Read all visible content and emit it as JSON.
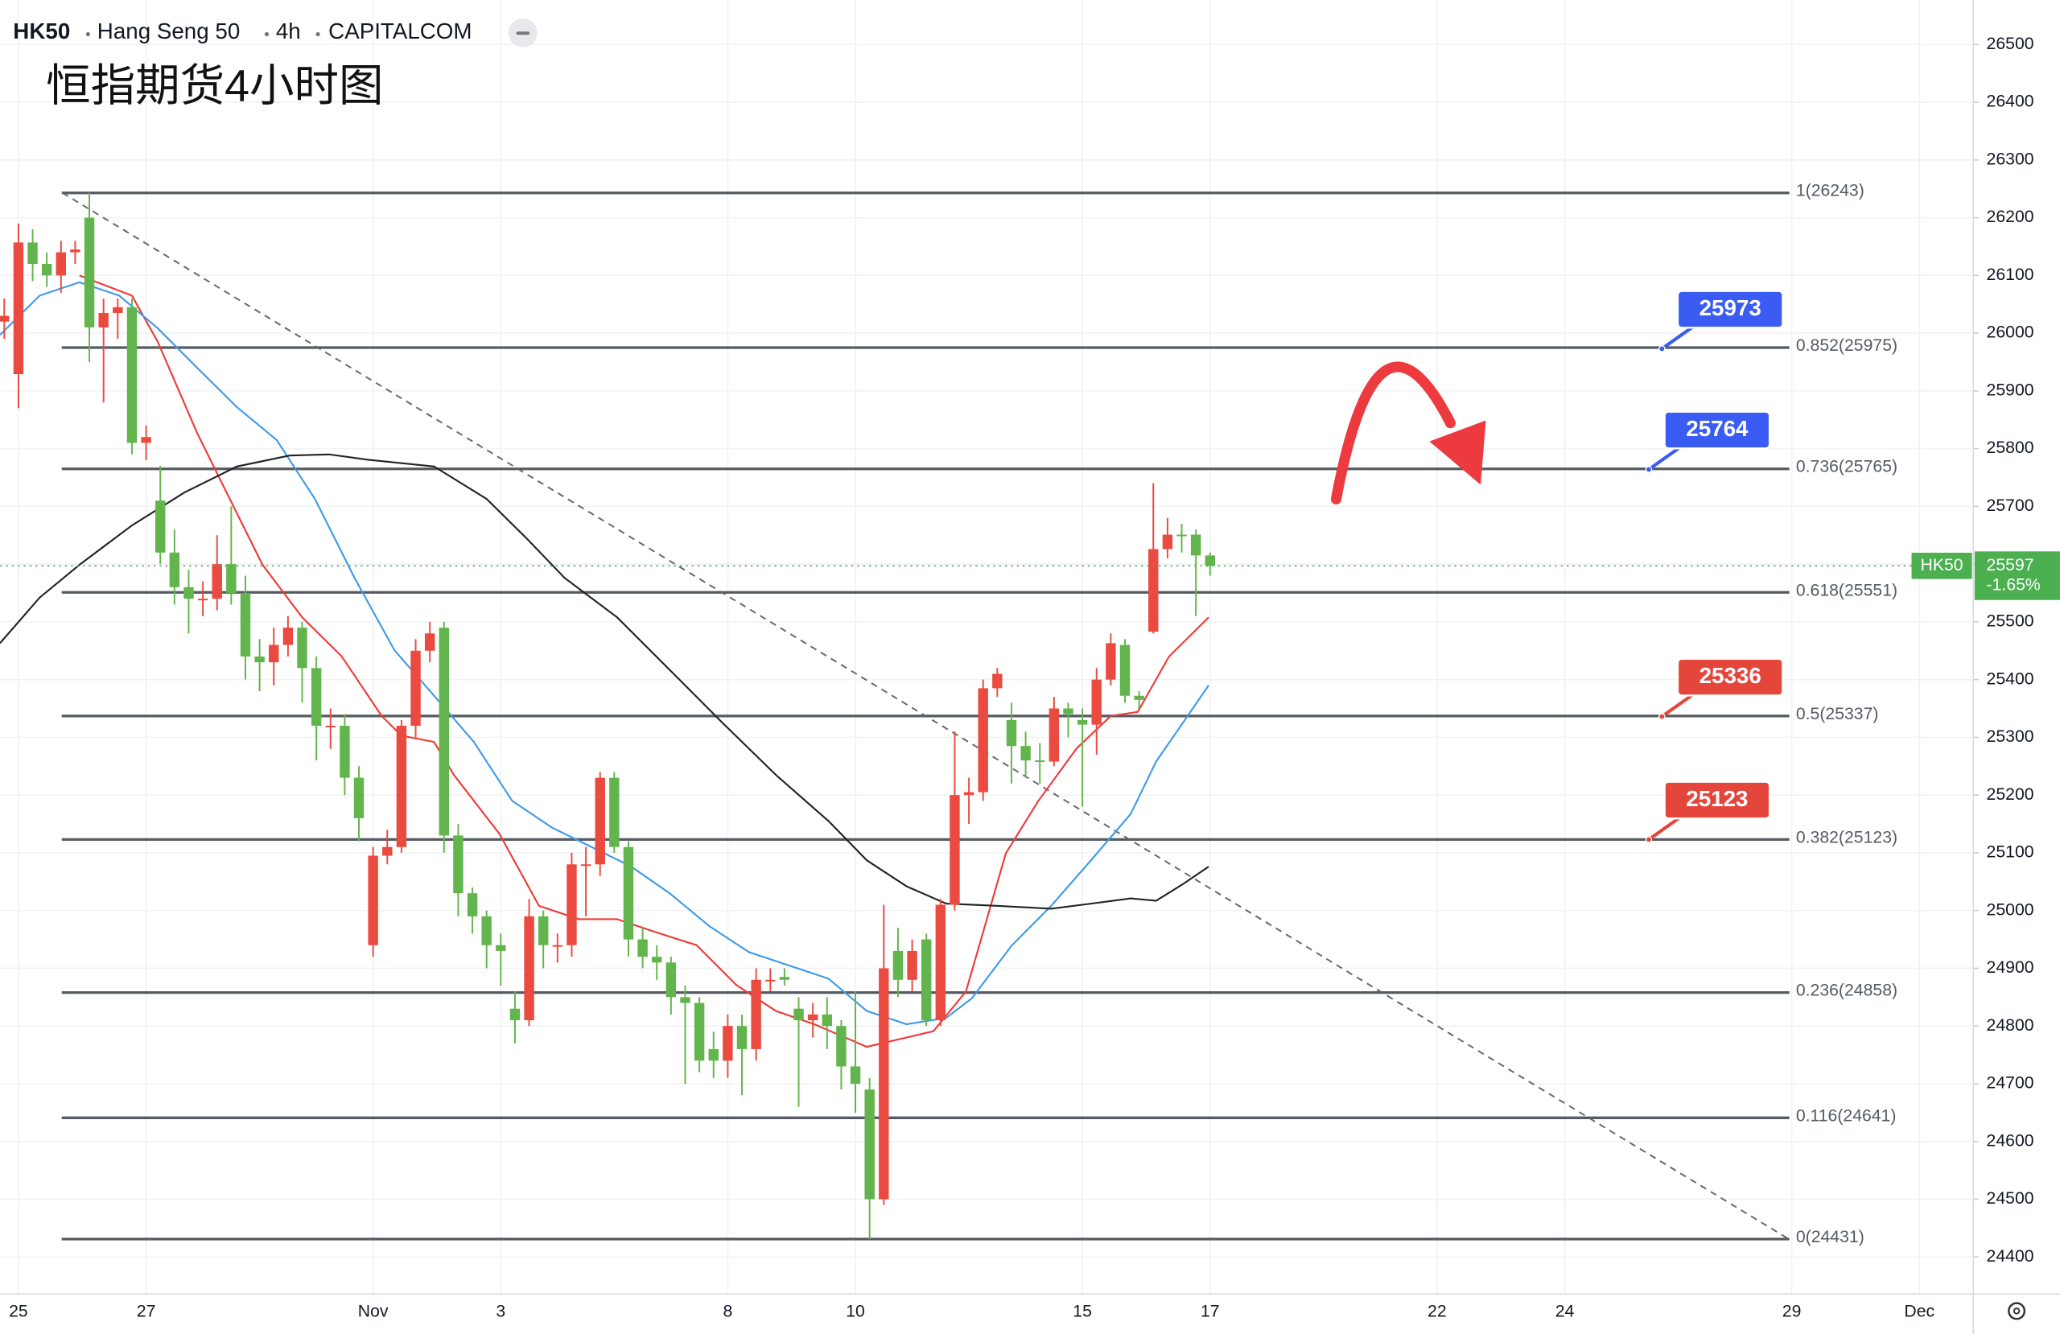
{
  "header": {
    "symbol": "HK50",
    "name": "Hang Seng 50",
    "interval": "4h",
    "source": "CAPITALCOM"
  },
  "chart_data": {
    "type": "candlestick",
    "title": "恒指期货4小时图",
    "open": [
      26020,
      25929,
      26157,
      26120,
      26100,
      26140,
      26200,
      26010,
      26035,
      26045,
      25810,
      25710,
      25620,
      25560,
      25540,
      25540,
      25600,
      25550,
      25440,
      25430,
      25460,
      25490,
      25420,
      25320,
      25320,
      25230,
      24940,
      25095,
      25110,
      25320,
      25450,
      25490,
      25130,
      25030,
      24990,
      24940,
      24830,
      24810,
      24990,
      24940,
      24940,
      25080,
      25080,
      25230,
      25110,
      24950,
      24920,
      24910,
      24850,
      24840,
      24760,
      24740,
      24800,
      24760,
      24880,
      24885,
      24830,
      24810,
      24820,
      24800,
      24730,
      24690,
      24500,
      24930,
      24880,
      24950,
      24810,
      25010,
      25200,
      25205,
      25385,
      25330,
      25285,
      25260,
      25258,
      25350,
      25330,
      25322,
      25400,
      25460,
      25372,
      25483,
      25626,
      25651,
      25651,
      25615
    ],
    "high": [
      26060,
      26190,
      26180,
      26140,
      26160,
      26160,
      26243,
      26060,
      26060,
      26060,
      25840,
      25770,
      25660,
      25590,
      25570,
      25650,
      25700,
      25580,
      25470,
      25490,
      25510,
      25500,
      25440,
      25350,
      25340,
      25250,
      25110,
      25140,
      25330,
      25470,
      25500,
      25500,
      25150,
      25040,
      25000,
      24960,
      24860,
      25020,
      25000,
      24960,
      25100,
      25110,
      25240,
      25240,
      25120,
      24970,
      24940,
      24920,
      24870,
      24850,
      24790,
      24820,
      24820,
      24900,
      24900,
      24900,
      24850,
      24840,
      24850,
      24810,
      24860,
      24710,
      25010,
      24970,
      24950,
      24960,
      25020,
      25310,
      25230,
      25400,
      25420,
      25360,
      25310,
      25290,
      25370,
      25360,
      25350,
      25420,
      25480,
      25470,
      25380,
      25740,
      25680,
      25670,
      25660,
      25620
    ],
    "low": [
      25990,
      25870,
      26090,
      26080,
      26070,
      26120,
      25950,
      25880,
      25990,
      25790,
      25780,
      25600,
      25530,
      25480,
      25510,
      25520,
      25530,
      25400,
      25380,
      25390,
      25440,
      25360,
      25260,
      25280,
      25200,
      25120,
      24920,
      25080,
      25100,
      25300,
      25430,
      25100,
      24990,
      24960,
      24900,
      24870,
      24770,
      24800,
      24900,
      24910,
      24920,
      24990,
      25060,
      25100,
      24920,
      24900,
      24880,
      24820,
      24700,
      24720,
      24710,
      24710,
      24680,
      24740,
      24860,
      24870,
      24660,
      24780,
      24760,
      24690,
      24650,
      24431,
      24490,
      24850,
      24860,
      24800,
      24800,
      25000,
      25150,
      25190,
      25370,
      25220,
      25230,
      25220,
      25250,
      25300,
      25180,
      25270,
      25390,
      25360,
      25350,
      25480,
      25610,
      25620,
      25510,
      25580
    ],
    "close": [
      26030,
      26157,
      26120,
      26100,
      26140,
      26145,
      26010,
      26035,
      26045,
      25810,
      25820,
      25620,
      25560,
      25540,
      25540,
      25600,
      25550,
      25440,
      25430,
      25460,
      25490,
      25420,
      25320,
      25320,
      25230,
      25160,
      25095,
      25110,
      25320,
      25450,
      25480,
      25130,
      25030,
      24990,
      24940,
      24930,
      24810,
      24990,
      24940,
      24940,
      25080,
      25080,
      25230,
      25110,
      24950,
      24920,
      24910,
      24850,
      24840,
      24740,
      24740,
      24800,
      24760,
      24880,
      24880,
      24880,
      24810,
      24820,
      24800,
      24730,
      24700,
      24500,
      24900,
      24880,
      24930,
      24810,
      25010,
      25200,
      25205,
      25385,
      25410,
      25285,
      25260,
      25258,
      25350,
      25340,
      25322,
      25400,
      25463,
      25372,
      25365,
      25626,
      25651,
      25650,
      25615,
      25597
    ],
    "up_color": "#ea4a3f",
    "down_color": "#62b54c",
    "series": [
      {
        "color": "#ee3a36",
        "x": [
          5.3,
          9.0,
          10.8,
          13.6,
          15.9,
          18.2,
          21.0,
          23.8,
          26.6,
          28.0,
          30.3,
          31.7,
          34.9,
          37.7,
          40.5,
          43.2,
          46.0,
          48.8,
          51.6,
          54.4,
          57.1,
          60.8,
          63.6,
          65.5,
          67.8,
          70.6,
          72.9,
          75.6,
          78.0,
          79.9,
          82.1,
          84.9
        ],
        "values": [
          26100,
          26065,
          25986,
          25827,
          25713,
          25599,
          25508,
          25440,
          25337,
          25303,
          25292,
          25235,
          25133,
          25008,
          24985,
          24985,
          24962,
          24940,
          24871,
          24826,
          24803,
          24764,
          24780,
          24791,
          24860,
          25099,
          25190,
          25281,
          25337,
          25344,
          25440,
          25508
        ]
      },
      {
        "color": "#3d9ae8",
        "x": [
          -0.3,
          2.5,
          5.3,
          8.1,
          10.8,
          13.6,
          16.4,
          19.2,
          21.9,
          24.7,
          27.5,
          30.3,
          33.1,
          35.8,
          38.6,
          41.4,
          44.2,
          46.9,
          49.7,
          52.5,
          55.3,
          58.1,
          60.8,
          63.6,
          66.4,
          68.2,
          71.0,
          73.8,
          76.6,
          79.4,
          81.2,
          83.1,
          84.9
        ],
        "values": [
          25997,
          26065,
          26088,
          26065,
          26009,
          25940,
          25872,
          25815,
          25713,
          25576,
          25451,
          25372,
          25292,
          25190,
          25144,
          25110,
          25076,
          25030,
          24973,
          24928,
          24905,
          24882,
          24826,
          24803,
          24814,
          24848,
          24939,
          25008,
          25087,
          25167,
          25258,
          25326,
          25390
        ]
      },
      {
        "color": "#222222",
        "x": [
          -0.3,
          2.5,
          5.3,
          9.0,
          12.7,
          16.4,
          20.1,
          22.9,
          25.6,
          30.3,
          34.0,
          36.8,
          39.5,
          43.2,
          46.9,
          50.6,
          54.4,
          58.1,
          60.8,
          63.6,
          66.4,
          70.1,
          73.8,
          76.6,
          79.4,
          81.2,
          83.1,
          84.9
        ],
        "values": [
          25463,
          25542,
          25599,
          25667,
          25724,
          25769,
          25788,
          25790,
          25781,
          25769,
          25713,
          25645,
          25576,
          25508,
          25417,
          25326,
          25235,
          25155,
          25087,
          25042,
          25012,
          25008,
          25003,
          25012,
          25021,
          25017,
          25046,
          25076
        ]
      }
    ],
    "fib_levels": [
      {
        "value": 26243,
        "label": "1(26243)"
      },
      {
        "value": 25975,
        "label": "0.852(25975)"
      },
      {
        "value": 25765,
        "label": "0.736(25765)"
      },
      {
        "value": 25551,
        "label": "0.618(25551)"
      },
      {
        "value": 25337,
        "label": "0.5(25337)"
      },
      {
        "value": 25123,
        "label": "0.382(25123)"
      },
      {
        "value": 24858,
        "label": "0.236(24858)"
      },
      {
        "value": 24641,
        "label": "0.116(24641)"
      },
      {
        "value": 24431,
        "label": "0(24431)"
      }
    ],
    "trendline": {
      "x": [
        4.1,
        125.8
      ],
      "values": [
        26243,
        24431
      ]
    },
    "callouts": [
      {
        "value": 25973,
        "color": "#3a5cf2"
      },
      {
        "value": 25764,
        "color": "#3a5cf2"
      },
      {
        "value": 25336,
        "color": "#e5463c"
      },
      {
        "value": 25123,
        "color": "#e5463c"
      }
    ],
    "last": {
      "label": "HK50",
      "value": 25597,
      "change": "-1.65%",
      "color": "#4caf50"
    },
    "xlim": [
      -0.3,
      138.8
    ],
    "xticks": [
      {
        "value": 1,
        "label": "25"
      },
      {
        "value": 10,
        "label": "27"
      },
      {
        "value": 26,
        "label": "Nov"
      },
      {
        "value": 35,
        "label": "3"
      },
      {
        "value": 51,
        "label": "8"
      },
      {
        "value": 60,
        "label": "10"
      },
      {
        "value": 76,
        "label": "15"
      },
      {
        "value": 85,
        "label": "17"
      },
      {
        "value": 101,
        "label": "22"
      },
      {
        "value": 110,
        "label": "24"
      },
      {
        "value": 126,
        "label": "29"
      },
      {
        "value": 135,
        "label": "Dec"
      }
    ],
    "ylim": [
      24336,
      26577
    ],
    "yticks": [
      24400,
      24500,
      24600,
      24700,
      24800,
      24900,
      25000,
      25100,
      25200,
      25300,
      25400,
      25500,
      25600,
      25700,
      25800,
      25900,
      26000,
      26100,
      26200,
      26300,
      26400,
      26500
    ],
    "grid": true
  }
}
